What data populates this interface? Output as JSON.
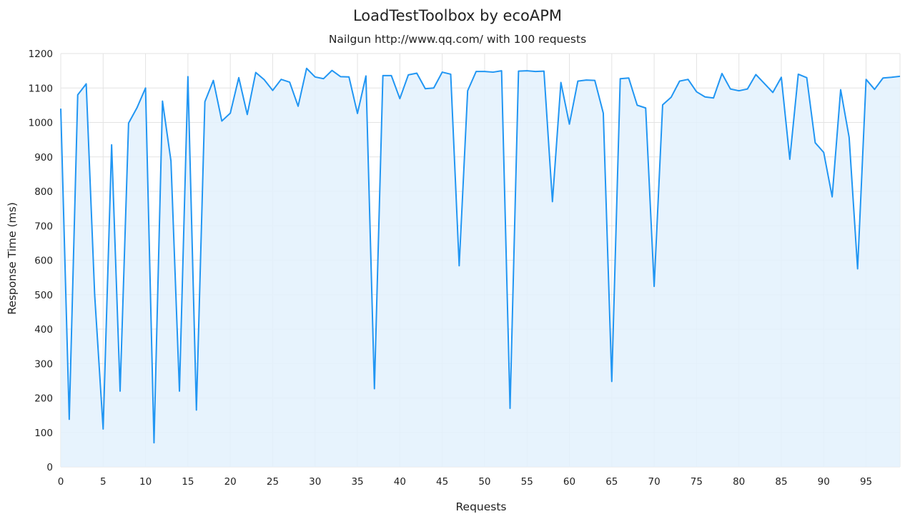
{
  "chart_data": {
    "type": "area",
    "title": "LoadTestToolbox by ecoAPM",
    "subtitle": "Nailgun http://www.qq.com/ with 100 requests",
    "xlabel": "Requests",
    "ylabel": "Response Time (ms)",
    "xlim": [
      0,
      99
    ],
    "ylim": [
      0,
      1200
    ],
    "xticks": [
      "0",
      "5",
      "10",
      "15",
      "20",
      "25",
      "30",
      "35",
      "40",
      "45",
      "50",
      "55",
      "60",
      "65",
      "70",
      "75",
      "80",
      "85",
      "90",
      "95"
    ],
    "yticks": [
      "0",
      "100",
      "200",
      "300",
      "400",
      "500",
      "600",
      "700",
      "800",
      "900",
      "1000",
      "1100",
      "1200"
    ],
    "grid": true,
    "colors": {
      "line": "#2196f3",
      "fill": "#e3f1fd",
      "grid": "#e3e3e3"
    },
    "x": [
      0,
      1,
      2,
      3,
      4,
      5,
      6,
      7,
      8,
      9,
      10,
      11,
      12,
      13,
      14,
      15,
      16,
      17,
      18,
      19,
      20,
      21,
      22,
      23,
      24,
      25,
      26,
      27,
      28,
      29,
      30,
      31,
      32,
      33,
      34,
      35,
      36,
      37,
      38,
      39,
      40,
      41,
      42,
      43,
      44,
      45,
      46,
      47,
      48,
      49,
      50,
      51,
      52,
      53,
      54,
      55,
      56,
      57,
      58,
      59,
      60,
      61,
      62,
      63,
      64,
      65,
      66,
      67,
      68,
      69,
      70,
      71,
      72,
      73,
      74,
      75,
      76,
      77,
      78,
      79,
      80,
      81,
      82,
      83,
      84,
      85,
      86,
      87,
      88,
      89,
      90,
      91,
      92,
      93,
      94,
      95,
      96,
      97,
      98,
      99
    ],
    "values": [
      1040,
      138,
      1080,
      1112,
      500,
      110,
      935,
      220,
      998,
      1043,
      1100,
      70,
      1062,
      888,
      220,
      1133,
      165,
      1060,
      1122,
      1004,
      1027,
      1130,
      1023,
      1145,
      1124,
      1093,
      1125,
      1117,
      1047,
      1157,
      1132,
      1127,
      1151,
      1133,
      1132,
      1026,
      1135,
      227,
      1136,
      1136,
      1069,
      1138,
      1143,
      1098,
      1100,
      1146,
      1140,
      584,
      1092,
      1148,
      1148,
      1146,
      1150,
      170,
      1149,
      1150,
      1148,
      1149,
      770,
      1116,
      995,
      1120,
      1123,
      1122,
      1027,
      248,
      1127,
      1129,
      1050,
      1042,
      524,
      1051,
      1073,
      1120,
      1125,
      1089,
      1074,
      1071,
      1142,
      1097,
      1092,
      1097,
      1139,
      1113,
      1087,
      1131,
      893,
      1140,
      1130,
      941,
      913,
      784,
      1095,
      957,
      575,
      1125,
      1096,
      1129,
      1131,
      1134
    ]
  }
}
